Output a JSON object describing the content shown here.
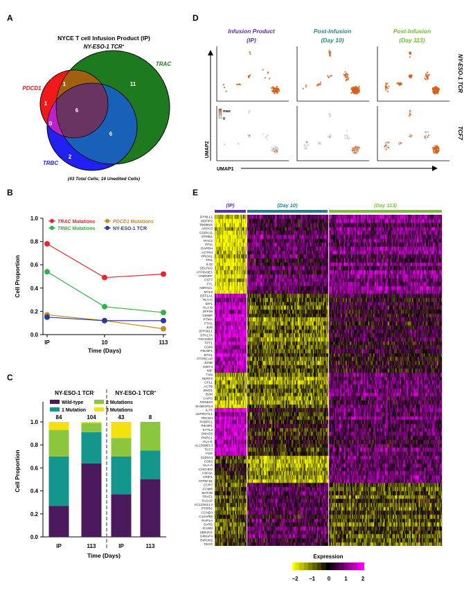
{
  "panel_labels": {
    "a": "A",
    "b": "B",
    "c": "C",
    "d": "D",
    "e": "E"
  },
  "venn": {
    "title": "NYCE T cell Infusion Product (IP)",
    "subtitle": "NY-ESO-1 TCR",
    "subtitle_sup": "+",
    "caption": "(43 Total Cells; 16 Unedited Cells)",
    "sets": {
      "trac": "TRAC",
      "pdcd1": "PDCD1",
      "trbc": "TRBC"
    },
    "counts": {
      "trac_only": "11",
      "pdcd1_trac": "1",
      "pdcd1_only": "1",
      "all_three": "6",
      "pdcd1_trbc": "0",
      "trac_trbc": "6",
      "trbc_only": "2"
    },
    "colors": {
      "trac": "#1e7a1e",
      "pdcd1": "#f01818",
      "trbc": "#2020f0",
      "pdcd1_trac": "#a0600e",
      "trac_trbc": "#1860b8",
      "pdcd1_trbc": "#c020c8",
      "all_three": "#6a3462"
    }
  },
  "chart_data": [
    {
      "type": "line",
      "panel": "B",
      "x": [
        "IP",
        "10",
        "113"
      ],
      "xlabel": "Time (Days)",
      "ylabel": "Cell Proportion",
      "ylim": [
        0,
        1.0
      ],
      "yticks": [
        "0.0",
        "0.2",
        "0.4",
        "0.6",
        "0.8",
        "1.0"
      ],
      "legend_placement": "top",
      "series": [
        {
          "name": "TRAC",
          "name_suffix": " Mutations",
          "color": "#e8262a",
          "values": [
            0.78,
            0.49,
            0.52
          ]
        },
        {
          "name": "TRBC",
          "name_suffix": " Mutations",
          "color": "#2db34a",
          "values": [
            0.54,
            0.24,
            0.19
          ]
        },
        {
          "name": "PDCD1",
          "name_suffix": " Mutations",
          "color": "#c98a1e",
          "values": [
            0.17,
            0.12,
            0.05
          ]
        },
        {
          "name": "NY-ESO-1 TCR",
          "name_suffix": "",
          "color": "#2a3aa0",
          "values": [
            0.15,
            0.12,
            0.12
          ]
        }
      ]
    },
    {
      "type": "bar",
      "stacked": true,
      "panel": "C",
      "groups": [
        {
          "label": "NY-ESO-1 TCR",
          "sup": "-"
        },
        {
          "label": "NY-ESO-1 TCR",
          "sup": "+"
        }
      ],
      "categories": [
        "IP",
        "113",
        "IP",
        "113"
      ],
      "counts": [
        "84",
        "104",
        "43",
        "8"
      ],
      "xlabel": "Time (Days)",
      "ylabel": "Cell Proportion",
      "ylim": [
        0,
        1.0
      ],
      "yticks": [
        "0.0",
        "0.2",
        "0.4",
        "0.6",
        "0.8",
        "1.0"
      ],
      "legend_placement": "top",
      "series": [
        {
          "name": "Wild-type",
          "color": "#4a1a5c",
          "values": [
            0.27,
            0.64,
            0.37,
            0.5
          ]
        },
        {
          "name": "1 Mutation",
          "color": "#13968c",
          "values": [
            0.43,
            0.27,
            0.33,
            0.25
          ]
        },
        {
          "name": "2 Mutations",
          "color": "#8cc63e",
          "values": [
            0.23,
            0.08,
            0.16,
            0.25
          ]
        },
        {
          "name": "3 Mutations",
          "color": "#f5e10e",
          "values": [
            0.07,
            0.01,
            0.14,
            0.0
          ]
        }
      ]
    }
  ],
  "umap": {
    "columns": [
      {
        "line1": "Infusion Product",
        "line2": "(IP)",
        "color": "#5a2db0"
      },
      {
        "line1": "Post-Infusion",
        "line2": "(Day 10)",
        "color": "#1f8a8a"
      },
      {
        "line1": "Post-Infusion",
        "line2": "(Day 113)",
        "color": "#6cc02a"
      }
    ],
    "rows": [
      "NY-ESO-1 TCR",
      "TCF7"
    ],
    "xlabel": "UMAP1",
    "ylabel": "UMAP2",
    "scale": {
      "max": "max",
      "min": "0"
    },
    "point_color": "#d8621c"
  },
  "heatmap": {
    "groups": [
      {
        "label": "(IP)",
        "color": "#5a2db0"
      },
      {
        "label": "(Day 10)",
        "color": "#1f7f9a"
      },
      {
        "label": "(Day 113)",
        "color": "#7cc03a"
      }
    ],
    "genes": [
      "DYNLL1",
      "NDFIP2",
      "TMSB4X",
      "ARPC5",
      "S100A11",
      "STMN1",
      "RAC2",
      "PPIA",
      "GAPDH",
      "ACTR3",
      "PROX1",
      "TPI1",
      "IL32",
      "SELPLG",
      "ATP6V0E1",
      "HNRNPF",
      "CST7",
      "FTL",
      "ABRACL",
      "MYL6",
      "EEF1A1",
      "HLA-C",
      "EIF1",
      "HLA-B",
      "ZFP36",
      "CIRBP",
      "PTMA",
      "FTH1",
      "JUN",
      "ZFP36L1",
      "STK17A",
      "TSC22D3",
      "TPT1",
      "CD69",
      "PIK3IP1",
      "BTG1",
      "PTPRCAP",
      "JUNB",
      "DDIT4",
      "MIF",
      "TXN",
      "SERF2",
      "CFL1",
      "ACTB",
      "ENO1",
      "B2M",
      "CAPG",
      "TMSB10",
      "SH3BGRL3",
      "IL7R",
      "LEPROTL1",
      "PDCD4",
      "PABPC1",
      "PIK3R1",
      "SYTL3",
      "SNHG8",
      "PNRC1",
      "HLA-E",
      "AL138963.3",
      "TCF7",
      "FOS",
      "S100A4",
      "CD52",
      "HLA-A",
      "CHCHD2",
      "H3F3A",
      "CRIP1",
      "ATP5F1E",
      "CCR7",
      "FCMR",
      "MAT2B",
      "TRAT1",
      "TAGAP",
      "AC133644.2",
      "PTPRC",
      "CCND3",
      "C12orf65",
      "RAP1A",
      "SARS",
      "ICAM2",
      "UBE2V1",
      "GIMAP4",
      "RIPOR2",
      "TECR"
    ],
    "colorbar": {
      "title": "Expression",
      "ticks": [
        "−2",
        "−1",
        "0",
        "1",
        "2"
      ],
      "colors": [
        "#ffff00",
        "#808000",
        "#000000",
        "#800080",
        "#ff00ff"
      ]
    }
  }
}
